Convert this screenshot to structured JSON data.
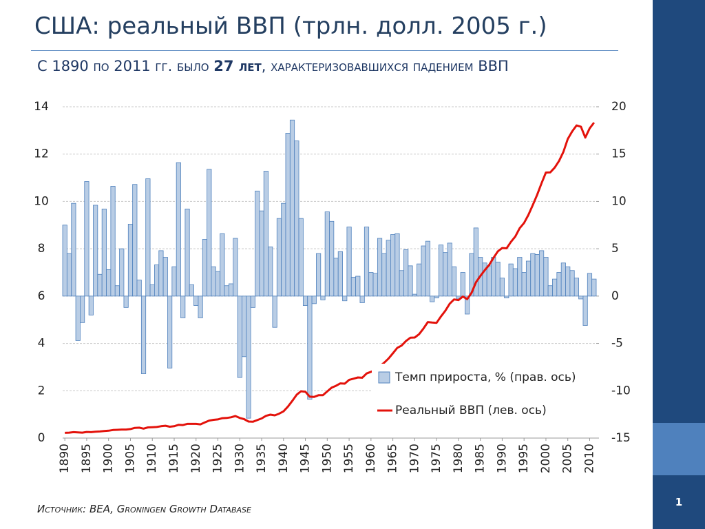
{
  "chart_data": {
    "type": "combo",
    "title": "США: реальный ВВП (трлн. долл. 2005 г.)",
    "subtitle_before": "С 1890 по 2011 гг. было",
    "subtitle_bold": "27 лет",
    "subtitle_after": ", характеризовавшихся падением ВВП",
    "source": "Источник: BEA, Groningen Growth Database",
    "slide_number": "1",
    "x": [
      1890,
      1891,
      1892,
      1893,
      1894,
      1895,
      1896,
      1897,
      1898,
      1899,
      1900,
      1901,
      1902,
      1903,
      1904,
      1905,
      1906,
      1907,
      1908,
      1909,
      1910,
      1911,
      1912,
      1913,
      1914,
      1915,
      1916,
      1917,
      1918,
      1919,
      1920,
      1921,
      1922,
      1923,
      1924,
      1925,
      1926,
      1927,
      1928,
      1929,
      1930,
      1931,
      1932,
      1933,
      1934,
      1935,
      1936,
      1937,
      1938,
      1939,
      1940,
      1941,
      1942,
      1943,
      1944,
      1945,
      1946,
      1947,
      1948,
      1949,
      1950,
      1951,
      1952,
      1953,
      1954,
      1955,
      1956,
      1957,
      1958,
      1959,
      1960,
      1961,
      1962,
      1963,
      1964,
      1965,
      1966,
      1967,
      1968,
      1969,
      1970,
      1971,
      1972,
      1973,
      1974,
      1975,
      1976,
      1977,
      1978,
      1979,
      1980,
      1981,
      1982,
      1983,
      1984,
      1985,
      1986,
      1987,
      1988,
      1989,
      1990,
      1991,
      1992,
      1993,
      1994,
      1995,
      1996,
      1997,
      1998,
      1999,
      2000,
      2001,
      2002,
      2003,
      2004,
      2005,
      2006,
      2007,
      2008,
      2009,
      2010,
      2011
    ],
    "xlim": [
      1889.5,
      2011.5
    ],
    "xticks": [
      1890,
      1895,
      1900,
      1905,
      1910,
      1915,
      1920,
      1925,
      1930,
      1935,
      1940,
      1945,
      1950,
      1955,
      1960,
      1965,
      1970,
      1975,
      1980,
      1985,
      1990,
      1995,
      2000,
      2005,
      2010
    ],
    "ylim": [
      0,
      14
    ],
    "yticks": [
      0,
      2,
      4,
      6,
      8,
      10,
      12,
      14
    ],
    "y2lim": [
      -15,
      20
    ],
    "y2ticks": [
      -15,
      -10,
      -5,
      0,
      5,
      10,
      15,
      20
    ],
    "grid": true,
    "legend": "lower right",
    "series": [
      {
        "name": "Темп прироста, % (прав. ось)",
        "type": "bar",
        "axis": "y2",
        "color": "#b9cde5",
        "edge": "#4f81bd",
        "values": [
          7.5,
          4.5,
          9.8,
          -4.7,
          -2.8,
          12.1,
          -2.0,
          9.6,
          2.3,
          9.2,
          2.8,
          11.6,
          1.1,
          5.0,
          -1.2,
          7.6,
          11.8,
          1.7,
          -8.2,
          12.4,
          1.2,
          3.3,
          4.8,
          4.1,
          -7.6,
          3.1,
          14.1,
          -2.3,
          9.2,
          1.2,
          -1.0,
          -2.3,
          6.0,
          13.4,
          3.1,
          2.6,
          6.6,
          1.1,
          1.3,
          6.1,
          -8.6,
          -6.4,
          -12.9,
          -1.2,
          11.1,
          9.0,
          13.2,
          5.2,
          -3.3,
          8.2,
          9.8,
          17.2,
          18.6,
          16.4,
          8.2,
          -1.0,
          -10.9,
          -0.8,
          4.5,
          -0.4,
          8.9,
          7.9,
          4.0,
          4.7,
          -0.5,
          7.3,
          2.0,
          2.1,
          -0.7,
          7.3,
          2.5,
          2.4,
          6.1,
          4.5,
          5.9,
          6.5,
          6.6,
          2.7,
          4.9,
          3.2,
          0.2,
          3.4,
          5.3,
          5.8,
          -0.6,
          -0.2,
          5.4,
          4.6,
          5.6,
          3.1,
          -0.3,
          2.5,
          -1.9,
          4.5,
          7.2,
          4.1,
          3.5,
          3.2,
          4.1,
          3.6,
          1.9,
          -0.2,
          3.4,
          2.9,
          4.1,
          2.5,
          3.7,
          4.5,
          4.4,
          4.8,
          4.1,
          1.1,
          1.8,
          2.5,
          3.5,
          3.1,
          2.7,
          1.9,
          -0.3,
          -3.1,
          2.4,
          1.8
        ]
      },
      {
        "name": "Реальный ВВП (лев. ось)",
        "type": "line",
        "axis": "y",
        "color": "#e3120b",
        "values": [
          0.22,
          0.23,
          0.25,
          0.24,
          0.23,
          0.26,
          0.25,
          0.27,
          0.28,
          0.3,
          0.31,
          0.34,
          0.35,
          0.36,
          0.36,
          0.38,
          0.43,
          0.44,
          0.4,
          0.45,
          0.46,
          0.47,
          0.5,
          0.52,
          0.48,
          0.5,
          0.56,
          0.55,
          0.6,
          0.6,
          0.6,
          0.58,
          0.66,
          0.74,
          0.77,
          0.79,
          0.84,
          0.85,
          0.88,
          0.93,
          0.85,
          0.8,
          0.7,
          0.69,
          0.76,
          0.83,
          0.94,
          0.99,
          0.96,
          1.03,
          1.13,
          1.33,
          1.57,
          1.83,
          1.98,
          1.96,
          1.75,
          1.74,
          1.81,
          1.81,
          1.97,
          2.13,
          2.21,
          2.31,
          2.3,
          2.46,
          2.51,
          2.56,
          2.55,
          2.73,
          2.8,
          2.87,
          3.04,
          3.18,
          3.36,
          3.58,
          3.81,
          3.91,
          4.1,
          4.24,
          4.25,
          4.39,
          4.63,
          4.9,
          4.88,
          4.87,
          5.14,
          5.38,
          5.68,
          5.86,
          5.83,
          5.98,
          5.87,
          6.14,
          6.58,
          6.85,
          7.09,
          7.31,
          7.61,
          7.89,
          8.03,
          8.02,
          8.29,
          8.52,
          8.87,
          9.09,
          9.43,
          9.85,
          10.28,
          10.77,
          11.22,
          11.23,
          11.43,
          11.71,
          12.1,
          12.64,
          12.96,
          13.21,
          13.16,
          12.7,
          13.09,
          13.33
        ]
      }
    ]
  }
}
